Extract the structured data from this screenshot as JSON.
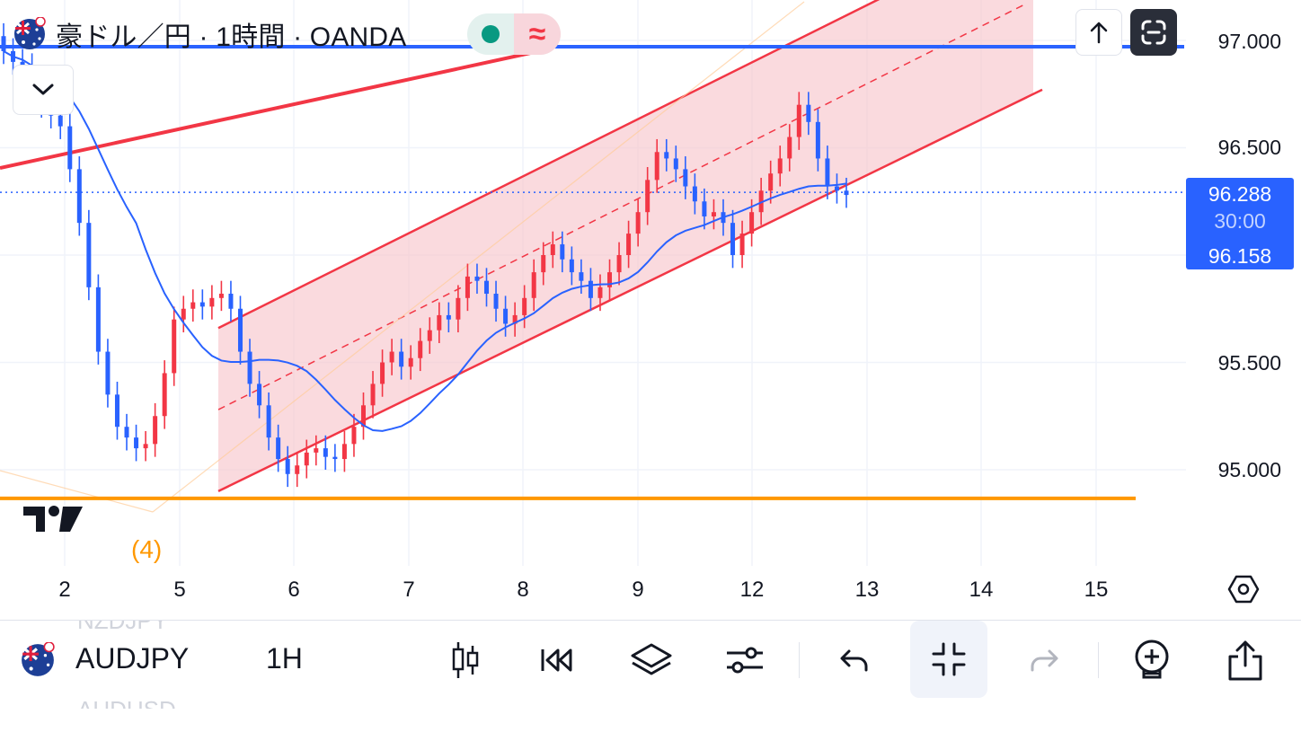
{
  "legend": {
    "title": "豪ドル／円 · 1時間 · OANDA",
    "pill_wave_glyph": "≈"
  },
  "colors": {
    "up": "#f23645",
    "down": "#2962ff",
    "channel_fill": "#f7c6cc",
    "channel_line": "#f23645",
    "ma_line": "#2962ff",
    "support_line": "#ff9800",
    "resistance_line": "#2962ff",
    "price_tag_bg": "#2962ff"
  },
  "price_axis": {
    "labels": [
      "97.000",
      "96.500",
      "95.500",
      "95.000"
    ],
    "current_price": "96.288",
    "countdown": "30:00",
    "ma_value": "96.158"
  },
  "time_axis": {
    "labels": [
      "2",
      "5",
      "6",
      "7",
      "8",
      "9",
      "12",
      "13",
      "14",
      "15"
    ]
  },
  "wave_label": "(4)",
  "icons": {
    "scroll_up": "arrow-up-icon",
    "fullscreen": "fullscreen-exit-icon",
    "collapse": "chevron-down-icon",
    "settings": "hexagon-settings-icon"
  },
  "bottom_bar": {
    "symbol": "AUDJPY",
    "interval": "1H",
    "ghost_above": "NZDJPY",
    "ghost_below": "AUDUSD",
    "tools": [
      "candle-type-icon",
      "replay-icon",
      "layers-icon",
      "indicator-settings-icon",
      "undo-icon",
      "collapse-icon",
      "redo-icon",
      "add-alert-icon",
      "share-icon"
    ]
  },
  "chart_data": {
    "type": "candlestick",
    "symbol": "AUDJPY",
    "interval": "1H",
    "source": "OANDA",
    "x_labels": [
      "2",
      "5",
      "6",
      "7",
      "8",
      "9",
      "12",
      "13",
      "14",
      "15"
    ],
    "y_ticks": [
      95.0,
      95.5,
      96.5,
      97.0
    ],
    "ylim": [
      94.6,
      97.2
    ],
    "last_price": 96.288,
    "ma_last": 96.158,
    "closes": [
      96.95,
      96.9,
      96.88,
      96.8,
      96.7,
      96.65,
      96.6,
      96.4,
      96.15,
      95.85,
      95.55,
      95.35,
      95.2,
      95.15,
      95.1,
      95.12,
      95.25,
      95.45,
      95.7,
      95.75,
      95.78,
      95.76,
      95.8,
      95.82,
      95.75,
      95.55,
      95.4,
      95.3,
      95.15,
      95.05,
      94.98,
      95.02,
      95.08,
      95.1,
      95.06,
      95.05,
      95.12,
      95.2,
      95.3,
      95.4,
      95.5,
      95.55,
      95.48,
      95.52,
      95.6,
      95.65,
      95.72,
      95.7,
      95.8,
      95.9,
      95.88,
      95.82,
      95.75,
      95.68,
      95.72,
      95.8,
      95.92,
      96.0,
      96.05,
      95.98,
      95.92,
      95.88,
      95.8,
      95.85,
      95.92,
      96.0,
      96.1,
      96.2,
      96.35,
      96.48,
      96.45,
      96.4,
      96.32,
      96.25,
      96.18,
      96.2,
      96.15,
      96.0,
      96.1,
      96.2,
      96.3,
      96.38,
      96.45,
      96.55,
      96.7,
      96.62,
      96.45,
      96.32,
      96.3,
      96.28
    ],
    "channel": {
      "upper_start": 95.66,
      "upper_end": 97.55,
      "lower_start": 94.9,
      "lower_end": 96.75
    },
    "support_level": 94.9,
    "resistance_level": 96.97
  }
}
